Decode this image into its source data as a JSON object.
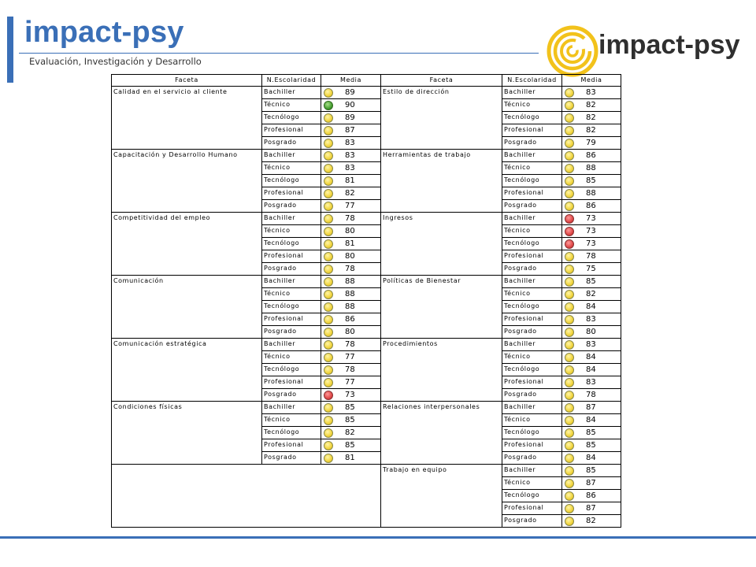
{
  "header": {
    "title": "impact-psy",
    "subtitle": "Evaluación, Investigación y Desarrollo",
    "logo_text": "impact-psy",
    "brand_color": "#3a6fb7"
  },
  "table": {
    "headers": [
      "Faceta",
      "N.Escolaridad",
      "Media",
      "Faceta",
      "N.Escolaridad",
      "Media"
    ],
    "left": [
      {
        "facet": "Calidad en el servicio al cliente",
        "rows": [
          {
            "level": "Bachiller",
            "value": "89",
            "status": "yellow"
          },
          {
            "level": "Técnico",
            "value": "90",
            "status": "green"
          },
          {
            "level": "Tecnólogo",
            "value": "89",
            "status": "yellow"
          },
          {
            "level": "Profesional",
            "value": "87",
            "status": "yellow"
          },
          {
            "level": "Posgrado",
            "value": "83",
            "status": "yellow"
          }
        ]
      },
      {
        "facet": "Capacitación y Desarrollo Humano",
        "rows": [
          {
            "level": "Bachiller",
            "value": "83",
            "status": "yellow"
          },
          {
            "level": "Técnico",
            "value": "83",
            "status": "yellow"
          },
          {
            "level": "Tecnólogo",
            "value": "81",
            "status": "yellow"
          },
          {
            "level": "Profesional",
            "value": "82",
            "status": "yellow"
          },
          {
            "level": "Posgrado",
            "value": "77",
            "status": "yellow"
          }
        ]
      },
      {
        "facet": "Competitividad del empleo",
        "rows": [
          {
            "level": "Bachiller",
            "value": "78",
            "status": "yellow"
          },
          {
            "level": "Técnico",
            "value": "80",
            "status": "yellow"
          },
          {
            "level": "Tecnólogo",
            "value": "81",
            "status": "yellow"
          },
          {
            "level": "Profesional",
            "value": "80",
            "status": "yellow"
          },
          {
            "level": "Posgrado",
            "value": "78",
            "status": "yellow"
          }
        ]
      },
      {
        "facet": "Comunicación",
        "rows": [
          {
            "level": "Bachiller",
            "value": "88",
            "status": "yellow"
          },
          {
            "level": "Técnico",
            "value": "88",
            "status": "yellow"
          },
          {
            "level": "Tecnólogo",
            "value": "88",
            "status": "yellow"
          },
          {
            "level": "Profesional",
            "value": "86",
            "status": "yellow"
          },
          {
            "level": "Posgrado",
            "value": "80",
            "status": "yellow"
          }
        ]
      },
      {
        "facet": "Comunicación estratégica",
        "rows": [
          {
            "level": "Bachiller",
            "value": "78",
            "status": "yellow"
          },
          {
            "level": "Técnico",
            "value": "77",
            "status": "yellow"
          },
          {
            "level": "Tecnólogo",
            "value": "78",
            "status": "yellow"
          },
          {
            "level": "Profesional",
            "value": "77",
            "status": "yellow"
          },
          {
            "level": "Posgrado",
            "value": "73",
            "status": "red"
          }
        ]
      },
      {
        "facet": "Condiciones físicas",
        "rows": [
          {
            "level": "Bachiller",
            "value": "85",
            "status": "yellow"
          },
          {
            "level": "Técnico",
            "value": "85",
            "status": "yellow"
          },
          {
            "level": "Tecnólogo",
            "value": "82",
            "status": "yellow"
          },
          {
            "level": "Profesional",
            "value": "85",
            "status": "yellow"
          },
          {
            "level": "Posgrado",
            "value": "81",
            "status": "yellow"
          }
        ]
      }
    ],
    "right": [
      {
        "facet": "Estilo de dirección",
        "rows": [
          {
            "level": "Bachiller",
            "value": "83",
            "status": "yellow"
          },
          {
            "level": "Técnico",
            "value": "82",
            "status": "yellow"
          },
          {
            "level": "Tecnólogo",
            "value": "82",
            "status": "yellow"
          },
          {
            "level": "Profesional",
            "value": "82",
            "status": "yellow"
          },
          {
            "level": "Posgrado",
            "value": "79",
            "status": "yellow"
          }
        ]
      },
      {
        "facet": "Herramientas de trabajo",
        "rows": [
          {
            "level": "Bachiller",
            "value": "86",
            "status": "yellow"
          },
          {
            "level": "Técnico",
            "value": "88",
            "status": "yellow"
          },
          {
            "level": "Tecnólogo",
            "value": "85",
            "status": "yellow"
          },
          {
            "level": "Profesional",
            "value": "88",
            "status": "yellow"
          },
          {
            "level": "Posgrado",
            "value": "86",
            "status": "yellow"
          }
        ]
      },
      {
        "facet": "Ingresos",
        "rows": [
          {
            "level": "Bachiller",
            "value": "73",
            "status": "red"
          },
          {
            "level": "Técnico",
            "value": "73",
            "status": "red"
          },
          {
            "level": "Tecnólogo",
            "value": "73",
            "status": "red"
          },
          {
            "level": "Profesional",
            "value": "78",
            "status": "yellow"
          },
          {
            "level": "Posgrado",
            "value": "75",
            "status": "yellow"
          }
        ]
      },
      {
        "facet": "Políticas de Bienestar",
        "rows": [
          {
            "level": "Bachiller",
            "value": "85",
            "status": "yellow"
          },
          {
            "level": "Técnico",
            "value": "82",
            "status": "yellow"
          },
          {
            "level": "Tecnólogo",
            "value": "84",
            "status": "yellow"
          },
          {
            "level": "Profesional",
            "value": "83",
            "status": "yellow"
          },
          {
            "level": "Posgrado",
            "value": "80",
            "status": "yellow"
          }
        ]
      },
      {
        "facet": "Procedimientos",
        "rows": [
          {
            "level": "Bachiller",
            "value": "83",
            "status": "yellow"
          },
          {
            "level": "Técnico",
            "value": "84",
            "status": "yellow"
          },
          {
            "level": "Tecnólogo",
            "value": "84",
            "status": "yellow"
          },
          {
            "level": "Profesional",
            "value": "83",
            "status": "yellow"
          },
          {
            "level": "Posgrado",
            "value": "78",
            "status": "yellow"
          }
        ]
      },
      {
        "facet": "Relaciones interpersonales",
        "rows": [
          {
            "level": "Bachiller",
            "value": "87",
            "status": "yellow"
          },
          {
            "level": "Técnico",
            "value": "84",
            "status": "yellow"
          },
          {
            "level": "Tecnólogo",
            "value": "85",
            "status": "yellow"
          },
          {
            "level": "Profesional",
            "value": "85",
            "status": "yellow"
          },
          {
            "level": "Posgrado",
            "value": "84",
            "status": "yellow"
          }
        ]
      },
      {
        "facet": "Trabajo en equipo",
        "rows": [
          {
            "level": "Bachiller",
            "value": "85",
            "status": "yellow"
          },
          {
            "level": "Técnico",
            "value": "87",
            "status": "yellow"
          },
          {
            "level": "Tecnólogo",
            "value": "86",
            "status": "yellow"
          },
          {
            "level": "Profesional",
            "value": "87",
            "status": "yellow"
          },
          {
            "level": "Posgrado",
            "value": "82",
            "status": "yellow"
          }
        ]
      }
    ]
  }
}
